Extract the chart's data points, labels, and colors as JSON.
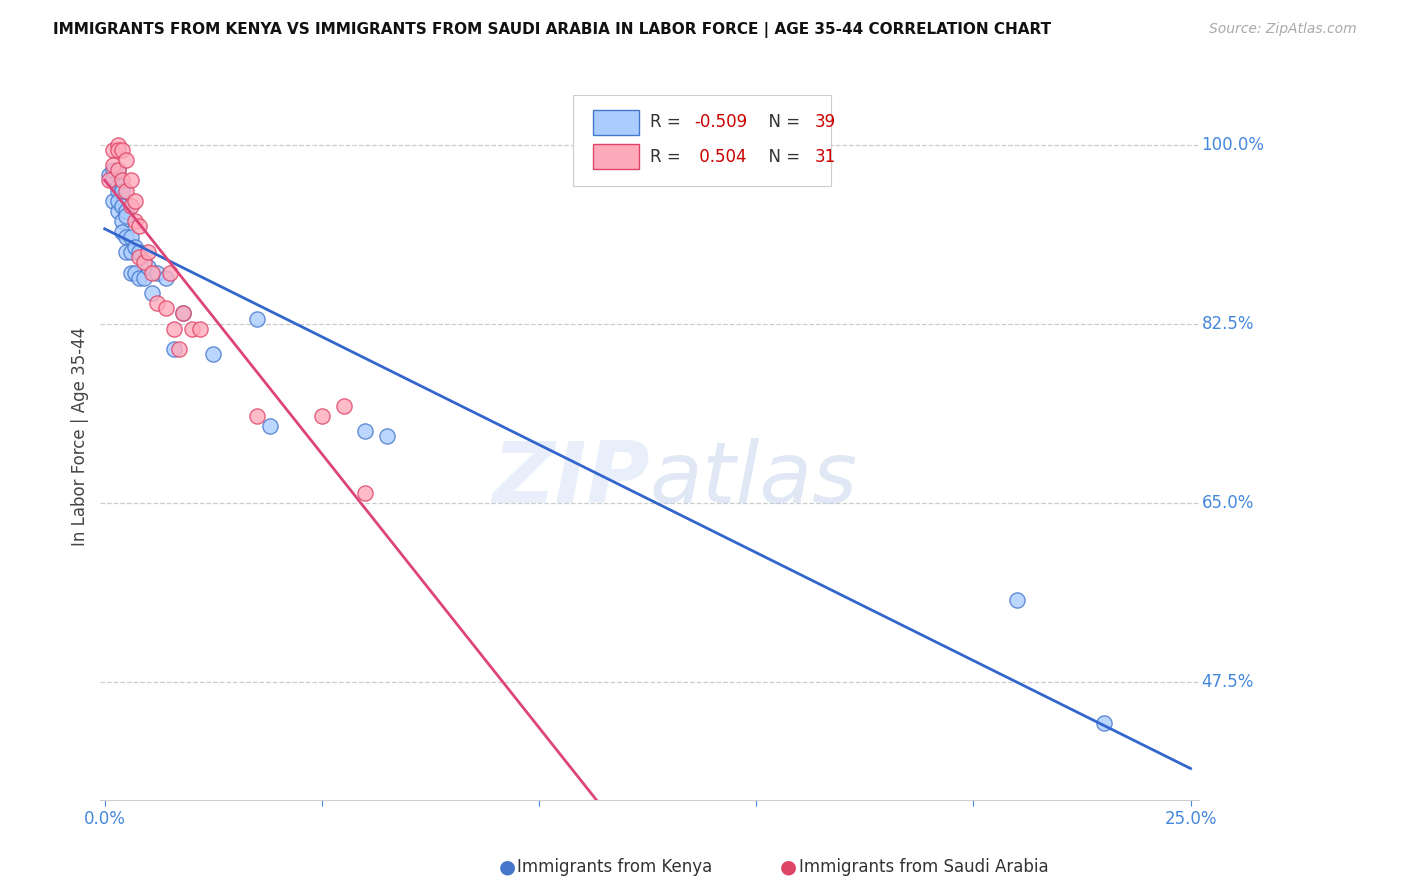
{
  "title": "IMMIGRANTS FROM KENYA VS IMMIGRANTS FROM SAUDI ARABIA IN LABOR FORCE | AGE 35-44 CORRELATION CHART",
  "source": "Source: ZipAtlas.com",
  "ylabel": "In Labor Force | Age 35-44",
  "xlim": [
    -0.001,
    0.252
  ],
  "ylim": [
    0.36,
    1.07
  ],
  "yticks": [
    0.475,
    0.65,
    0.825,
    1.0
  ],
  "ytick_labels": [
    "47.5%",
    "65.0%",
    "82.5%",
    "100.0%"
  ],
  "xticks": [
    0.0,
    0.05,
    0.1,
    0.15,
    0.2,
    0.25
  ],
  "xtick_labels": [
    "0.0%",
    "",
    "",
    "",
    "",
    "25.0%"
  ],
  "kenya_R": -0.509,
  "kenya_N": 39,
  "saudi_R": 0.504,
  "saudi_N": 31,
  "kenya_color": "#aaccff",
  "saudi_color": "#ffaabb",
  "kenya_edge_color": "#4477cc",
  "saudi_edge_color": "#dd4466",
  "kenya_line_color": "#3366cc",
  "saudi_line_color": "#dd4477",
  "right_axis_color": "#4488dd",
  "bottom_axis_color": "#4488dd",
  "background_color": "#ffffff",
  "kenya_x": [
    0.001,
    0.002,
    0.002,
    0.002,
    0.003,
    0.003,
    0.003,
    0.003,
    0.003,
    0.004,
    0.004,
    0.004,
    0.004,
    0.004,
    0.005,
    0.005,
    0.005,
    0.005,
    0.006,
    0.006,
    0.006,
    0.007,
    0.007,
    0.008,
    0.008,
    0.009,
    0.01,
    0.011,
    0.012,
    0.014,
    0.016,
    0.018,
    0.025,
    0.035,
    0.038,
    0.06,
    0.065,
    0.21,
    0.23
  ],
  "kenya_y": [
    0.97,
    0.965,
    0.945,
    0.975,
    0.975,
    0.96,
    0.955,
    0.935,
    0.945,
    0.96,
    0.955,
    0.94,
    0.925,
    0.915,
    0.935,
    0.91,
    0.895,
    0.93,
    0.91,
    0.895,
    0.875,
    0.9,
    0.875,
    0.895,
    0.87,
    0.87,
    0.88,
    0.855,
    0.875,
    0.87,
    0.8,
    0.835,
    0.795,
    0.83,
    0.725,
    0.72,
    0.715,
    0.555,
    0.435
  ],
  "saudi_x": [
    0.001,
    0.002,
    0.002,
    0.003,
    0.003,
    0.003,
    0.004,
    0.004,
    0.005,
    0.005,
    0.006,
    0.006,
    0.007,
    0.007,
    0.008,
    0.008,
    0.009,
    0.01,
    0.011,
    0.012,
    0.014,
    0.015,
    0.016,
    0.017,
    0.018,
    0.02,
    0.022,
    0.035,
    0.05,
    0.055,
    0.06
  ],
  "saudi_y": [
    0.965,
    0.995,
    0.98,
    1.0,
    0.995,
    0.975,
    0.995,
    0.965,
    0.985,
    0.955,
    0.965,
    0.94,
    0.945,
    0.925,
    0.92,
    0.89,
    0.885,
    0.895,
    0.875,
    0.845,
    0.84,
    0.875,
    0.82,
    0.8,
    0.835,
    0.82,
    0.82,
    0.735,
    0.735,
    0.745,
    0.66
  ]
}
